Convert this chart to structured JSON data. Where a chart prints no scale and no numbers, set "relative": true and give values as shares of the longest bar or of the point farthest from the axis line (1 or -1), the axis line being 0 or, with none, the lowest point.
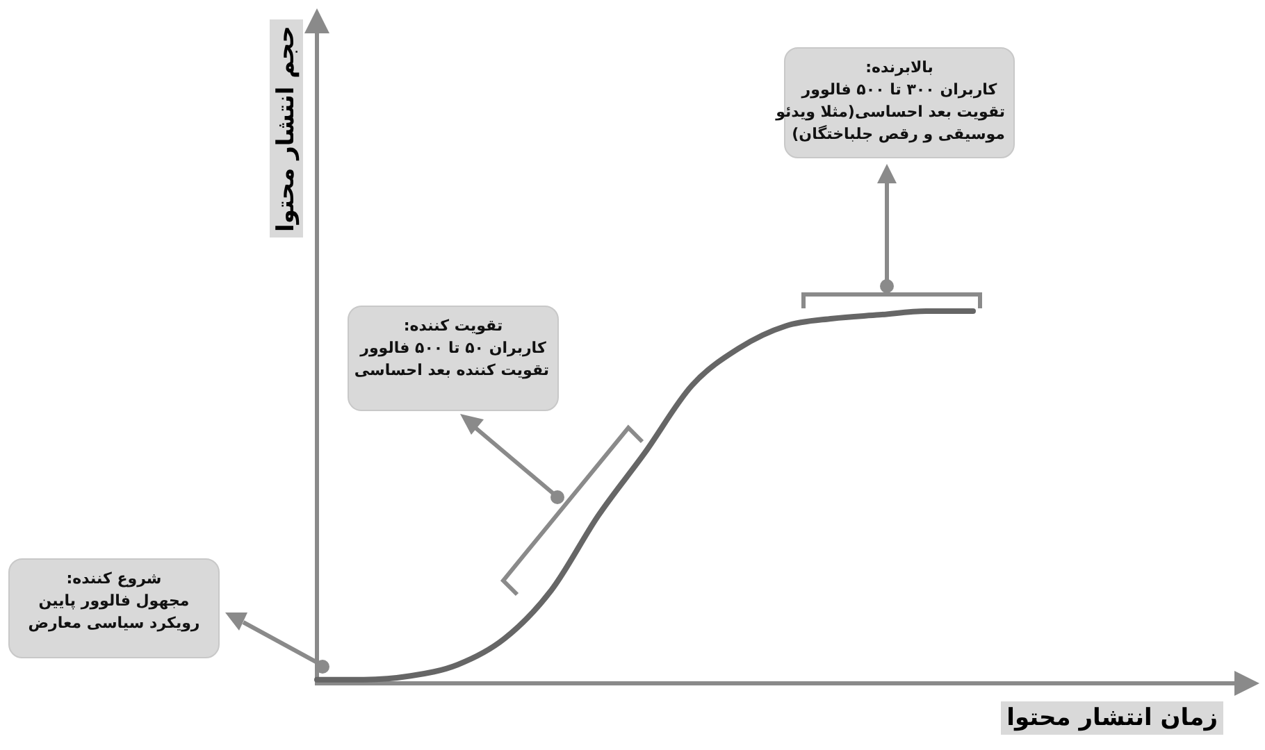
{
  "chart_data": {
    "type": "line",
    "relative": true,
    "tick_labels": false,
    "color": "#666666",
    "marker": "none",
    "xlabel": "زمان انتشار محتوا",
    "ylabel": "حجم انتشار محتوا",
    "categories": [
      null,
      null,
      null,
      null,
      null,
      null,
      null,
      null,
      null,
      null,
      null,
      null,
      null,
      null,
      null
    ],
    "values": [
      0.01,
      0.01,
      0.02,
      0.05,
      0.12,
      0.25,
      0.45,
      0.62,
      0.8,
      0.9,
      0.96,
      0.98,
      0.99,
      1,
      1
    ],
    "annotations": [
      "شروع کننده:\nمجهول فالوور پایین\nرویکرد سیاسی معارض",
      "تقویت کننده:\nکاربران ۵۰ تا ۵۰۰ فالوور\nتقویت کننده بعد احساسی",
      "بالابرنده:\nکاربران ۳۰۰ تا ۵۰۰ فالوور\nتقویت بعد احساسی(مثلا ویدئو\nموسیقی و رقص جلباختگان)"
    ]
  }
}
